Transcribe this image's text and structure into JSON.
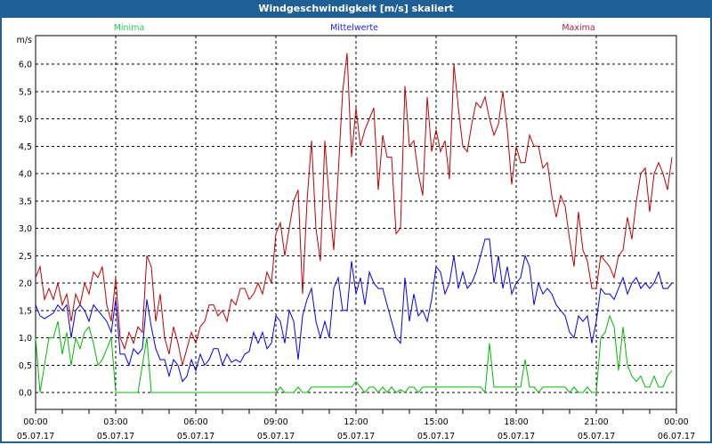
{
  "window": {
    "title": "Windgeschwindigkeit [m/s] skaliert"
  },
  "chart_data": {
    "type": "line",
    "title": "Windgeschwindigkeit [m/s] skaliert",
    "ylabel": "m/s",
    "xlabel": "",
    "ylim": [
      -0.3,
      6.5
    ],
    "yticks": [
      "0,0",
      "0,5",
      "1,0",
      "1,5",
      "2,0",
      "2,5",
      "3,0",
      "3,5",
      "4,0",
      "4,5",
      "5,0",
      "5,5",
      "6,0"
    ],
    "ytick_values": [
      0,
      0.5,
      1,
      1.5,
      2,
      2.5,
      3,
      3.5,
      4,
      4.5,
      5,
      5.5,
      6
    ],
    "xlim_hours": [
      0,
      24
    ],
    "xticks": [
      {
        "time": "00:00",
        "date": "05.07.17"
      },
      {
        "time": "03:00",
        "date": "05.07.17"
      },
      {
        "time": "06:00",
        "date": "05.07.17"
      },
      {
        "time": "09:00",
        "date": "05.07.17"
      },
      {
        "time": "12:00",
        "date": "05.07.17"
      },
      {
        "time": "15:00",
        "date": "05.07.17"
      },
      {
        "time": "18:00",
        "date": "05.07.17"
      },
      {
        "time": "21:00",
        "date": "05.07.17"
      },
      {
        "time": "00:00",
        "date": "06.07.17"
      }
    ],
    "grid": true,
    "legend_placement": "top",
    "sample_interval_minutes": 10,
    "series": [
      {
        "name": "Minima",
        "color": "#00bb00",
        "label_color": "#22cc55",
        "values": [
          1.0,
          0.0,
          0.5,
          1.0,
          1.0,
          1.3,
          0.7,
          1.1,
          0.5,
          1.0,
          0.8,
          1.1,
          1.2,
          0.9,
          0.5,
          0.6,
          0.8,
          1.0,
          0.0,
          0,
          0,
          0,
          0,
          0,
          0.5,
          1.0,
          0,
          0,
          0,
          0,
          0,
          0,
          0,
          0,
          0,
          0,
          0,
          0,
          0,
          0,
          0,
          0,
          0,
          0,
          0,
          0,
          0,
          0,
          0,
          0,
          0,
          0,
          0,
          0,
          0,
          0.1,
          0,
          0,
          0,
          0.1,
          0,
          0,
          0.1,
          0.1,
          0.1,
          0.1,
          0.1,
          0.1,
          0.1,
          0.1,
          0.1,
          0.1,
          0.2,
          0.1,
          0,
          0.1,
          0.1,
          0,
          0.1,
          0,
          0.1,
          0,
          0.05,
          0,
          0.1,
          0.1,
          0,
          0.1,
          0.1,
          0.1,
          0.1,
          0.1,
          0.1,
          0.1,
          0.1,
          0.1,
          0.1,
          0.1,
          0.1,
          0.1,
          0.1,
          0,
          0.9,
          0.1,
          0.1,
          0.1,
          0.1,
          0.1,
          0.1,
          0.1,
          0.6,
          0.1,
          0.1,
          0,
          0.1,
          0.1,
          0.1,
          0.1,
          0.1,
          0.1,
          0,
          0.1,
          0,
          0,
          0.1,
          0,
          0,
          1.0,
          1.1,
          1.4,
          1.2,
          0.4,
          1.2,
          0.5,
          0.3,
          0.2,
          0.3,
          0.1,
          0.1,
          0.3,
          0.1,
          0.1,
          0.3,
          0.4
        ]
      },
      {
        "name": "Mittelwerte",
        "color": "#0000ee",
        "label_color": "#2222ee",
        "values": [
          1.6,
          1.4,
          1.35,
          1.4,
          1.45,
          1.6,
          1.5,
          1.6,
          1.0,
          1.5,
          1.6,
          1.5,
          1.3,
          1.6,
          1.5,
          1.4,
          1.3,
          1.1,
          1.7,
          0.7,
          0.7,
          0.5,
          0.8,
          0.7,
          0.8,
          1.7,
          1.2,
          0.8,
          0.6,
          0.6,
          0.3,
          0.6,
          0.5,
          0.2,
          0.3,
          0.6,
          0.4,
          0.7,
          0.5,
          0.6,
          0.8,
          0.8,
          0.5,
          0.7,
          0.55,
          0.6,
          0.55,
          0.7,
          0.75,
          1.1,
          0.9,
          1.1,
          0.8,
          0.9,
          1.4,
          1.3,
          0.9,
          1.5,
          1.3,
          0.6,
          1.4,
          1.7,
          1.9,
          1.3,
          1.0,
          1.3,
          1.0,
          1.9,
          2.1,
          1.5,
          1.5,
          2.4,
          1.8,
          2.1,
          1.6,
          2.2,
          2.0,
          1.9,
          1.9,
          1.6,
          1.3,
          1.0,
          0.9,
          2.1,
          1.3,
          1.8,
          1.4,
          1.5,
          1.3,
          1.7,
          2.3,
          2.2,
          1.8,
          2.0,
          2.5,
          1.9,
          2.2,
          1.9,
          2.0,
          2.2,
          2.5,
          2.8,
          2.8,
          2.0,
          2.5,
          1.9,
          2.3,
          1.8,
          2.0,
          2.1,
          2.5,
          2.3,
          1.6,
          2.0,
          1.8,
          1.9,
          1.8,
          1.6,
          1.5,
          1.4,
          1.1,
          1.0,
          1.4,
          1.3,
          1.4,
          0.9,
          1.3,
          1.9,
          1.8,
          1.8,
          1.7,
          1.9,
          2.1,
          1.8,
          2.0,
          2.1,
          1.9,
          2.0,
          1.9,
          2.0,
          2.2,
          1.9,
          1.9,
          2.0
        ]
      },
      {
        "name": "Maxima",
        "color": "#c00000",
        "label_color": "#a02050",
        "values": [
          2.1,
          2.3,
          1.7,
          1.9,
          1.7,
          2.0,
          1.6,
          1.8,
          1.3,
          1.8,
          1.6,
          2.0,
          1.8,
          2.2,
          2.1,
          2.3,
          1.6,
          1.3,
          2.1,
          1.0,
          0.8,
          1.1,
          0.9,
          1.2,
          1.1,
          2.5,
          2.3,
          1.3,
          1.8,
          1.0,
          0.7,
          1.2,
          0.9,
          0.5,
          0.8,
          1.1,
          0.9,
          1.2,
          1.3,
          1.6,
          1.6,
          1.4,
          1.5,
          1.3,
          1.7,
          1.6,
          1.9,
          1.9,
          1.7,
          1.8,
          2.0,
          1.8,
          2.2,
          2.0,
          2.9,
          3.1,
          2.5,
          3.0,
          3.5,
          3.7,
          1.8,
          3.5,
          4.6,
          3.0,
          2.4,
          4.6,
          3.5,
          2.6,
          4.0,
          5.5,
          6.2,
          4.3,
          5.2,
          4.5,
          4.8,
          5.0,
          5.2,
          3.7,
          4.7,
          4.3,
          4.3,
          2.9,
          3.0,
          5.6,
          4.5,
          4.6,
          4.0,
          3.6,
          5.4,
          4.4,
          4.8,
          4.4,
          4.6,
          3.9,
          6.0,
          5.2,
          4.5,
          4.4,
          4.9,
          5.3,
          5.2,
          5.4,
          5.0,
          4.7,
          4.9,
          5.5,
          4.8,
          3.8,
          4.5,
          4.2,
          4.2,
          4.7,
          4.5,
          4.5,
          4.1,
          4.2,
          3.6,
          3.2,
          3.6,
          3.4,
          2.8,
          2.3,
          3.3,
          2.6,
          2.4,
          1.9,
          1.9,
          2.5,
          2.4,
          2.3,
          2.1,
          2.5,
          2.6,
          3.2,
          2.8,
          3.5,
          4.0,
          4.1,
          3.3,
          4.0,
          4.2,
          4.0,
          3.7,
          4.3
        ]
      }
    ]
  }
}
